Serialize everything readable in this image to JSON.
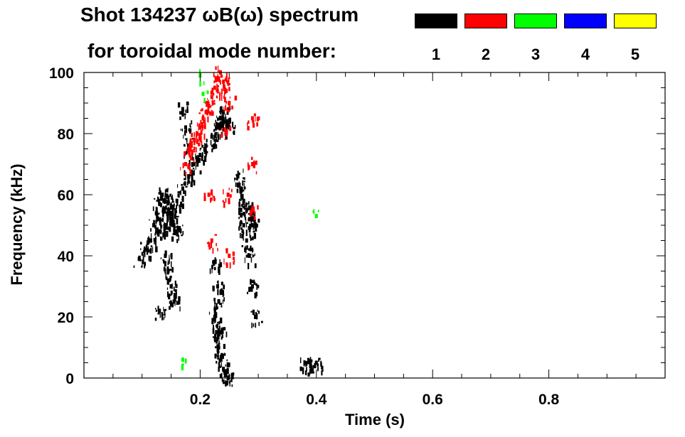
{
  "header": {
    "title": "Shot 134237 ωB(ω) spectrum",
    "subtitle": "for toroidal mode number:"
  },
  "legend": [
    {
      "label": "1",
      "color": "#000000"
    },
    {
      "label": "2",
      "color": "#ff0000"
    },
    {
      "label": "3",
      "color": "#00ff00"
    },
    {
      "label": "4",
      "color": "#0000ff"
    },
    {
      "label": "5",
      "color": "#ffff00"
    }
  ],
  "chart_data": {
    "type": "scatter",
    "title": "Shot 134237 ωB(ω) spectrum",
    "xlabel": "Time (s)",
    "ylabel": "Frequency (kHz)",
    "xlim": [
      0.0,
      1.0
    ],
    "ylim": [
      0,
      100
    ],
    "x_ticks": [
      "0.2",
      "0.4",
      "0.6",
      "0.8"
    ],
    "x_tick_values": [
      0.2,
      0.4,
      0.6,
      0.8
    ],
    "y_ticks": [
      "0",
      "20",
      "40",
      "60",
      "80",
      "100"
    ],
    "y_tick_values": [
      0,
      20,
      40,
      60,
      80,
      100
    ],
    "legend_position": "top",
    "grid": false,
    "series": [
      {
        "name": "1",
        "color": "#000000",
        "points": [
          [
            0.095,
            39
          ],
          [
            0.105,
            42
          ],
          [
            0.115,
            45
          ],
          [
            0.12,
            50
          ],
          [
            0.125,
            54
          ],
          [
            0.13,
            57
          ],
          [
            0.135,
            60
          ],
          [
            0.14,
            58
          ],
          [
            0.145,
            55
          ],
          [
            0.15,
            52
          ],
          [
            0.155,
            50
          ],
          [
            0.16,
            48
          ],
          [
            0.13,
            48
          ],
          [
            0.14,
            50
          ],
          [
            0.15,
            56
          ],
          [
            0.16,
            58
          ],
          [
            0.17,
            62
          ],
          [
            0.18,
            66
          ],
          [
            0.19,
            70
          ],
          [
            0.2,
            73
          ],
          [
            0.21,
            76
          ],
          [
            0.22,
            79
          ],
          [
            0.23,
            82
          ],
          [
            0.235,
            85
          ],
          [
            0.24,
            87
          ],
          [
            0.245,
            84
          ],
          [
            0.25,
            82
          ],
          [
            0.14,
            40
          ],
          [
            0.145,
            35
          ],
          [
            0.15,
            30
          ],
          [
            0.155,
            25
          ],
          [
            0.13,
            22
          ],
          [
            0.225,
            20
          ],
          [
            0.228,
            15
          ],
          [
            0.232,
            10
          ],
          [
            0.236,
            6
          ],
          [
            0.24,
            3
          ],
          [
            0.244,
            1
          ],
          [
            0.248,
            0
          ],
          [
            0.235,
            15
          ],
          [
            0.232,
            25
          ],
          [
            0.23,
            30
          ],
          [
            0.226,
            38
          ],
          [
            0.265,
            66
          ],
          [
            0.27,
            62
          ],
          [
            0.275,
            58
          ],
          [
            0.28,
            55
          ],
          [
            0.285,
            52
          ],
          [
            0.29,
            50
          ],
          [
            0.27,
            55
          ],
          [
            0.275,
            50
          ],
          [
            0.28,
            45
          ],
          [
            0.285,
            40
          ],
          [
            0.29,
            30
          ],
          [
            0.295,
            20
          ],
          [
            0.17,
            88
          ],
          [
            0.175,
            82
          ],
          [
            0.18,
            76
          ],
          [
            0.38,
            5
          ],
          [
            0.39,
            4
          ],
          [
            0.4,
            5
          ]
        ]
      },
      {
        "name": "2",
        "color": "#ff0000",
        "points": [
          [
            0.175,
            70
          ],
          [
            0.18,
            74
          ],
          [
            0.185,
            76
          ],
          [
            0.19,
            78
          ],
          [
            0.195,
            80
          ],
          [
            0.2,
            82
          ],
          [
            0.205,
            85
          ],
          [
            0.21,
            87
          ],
          [
            0.215,
            89
          ],
          [
            0.22,
            92
          ],
          [
            0.225,
            95
          ],
          [
            0.23,
            98
          ],
          [
            0.235,
            100
          ],
          [
            0.24,
            97
          ],
          [
            0.245,
            94
          ],
          [
            0.25,
            90
          ],
          [
            0.245,
            80
          ],
          [
            0.248,
            60
          ],
          [
            0.25,
            40
          ],
          [
            0.215,
            60
          ],
          [
            0.22,
            45
          ],
          [
            0.29,
            85
          ],
          [
            0.29,
            70
          ],
          [
            0.29,
            55
          ]
        ]
      },
      {
        "name": "3",
        "color": "#00ff00",
        "points": [
          [
            0.2,
            99
          ],
          [
            0.205,
            93
          ],
          [
            0.4,
            53
          ],
          [
            0.17,
            6
          ]
        ]
      },
      {
        "name": "4",
        "color": "#0000ff",
        "points": []
      },
      {
        "name": "5",
        "color": "#ffff00",
        "points": []
      }
    ]
  }
}
